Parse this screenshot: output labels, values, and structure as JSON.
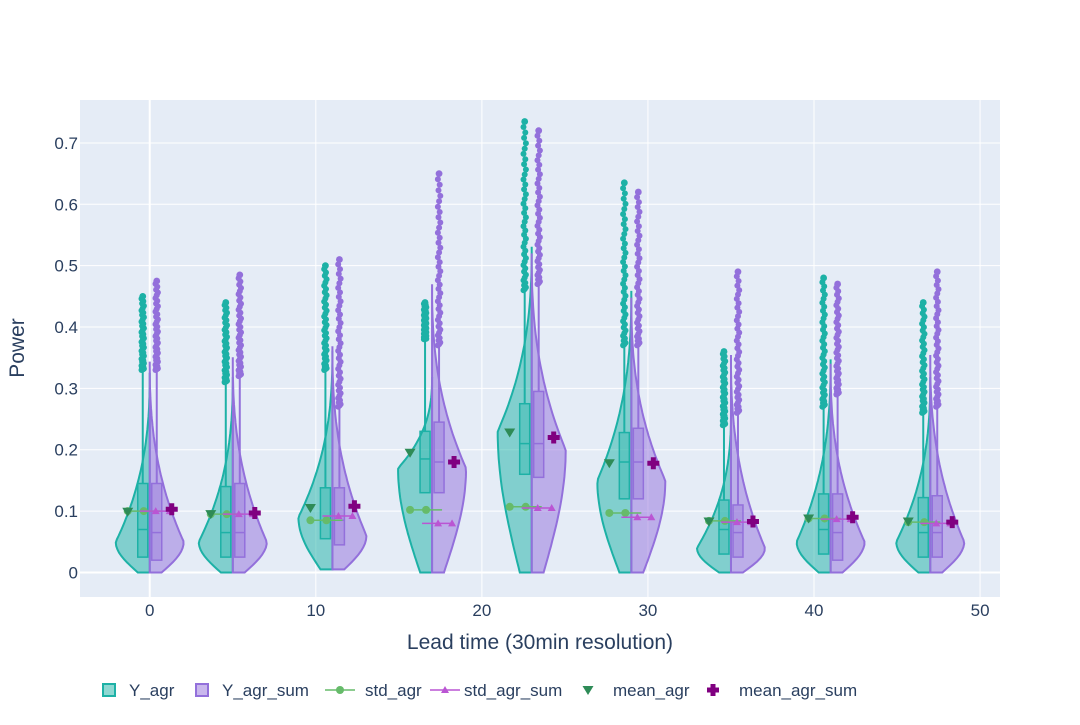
{
  "chart_data": {
    "type": "violin",
    "title": "",
    "xlabel": "Lead time (30min resolution)",
    "ylabel": "Power",
    "xlim": [
      -4.2,
      51.2
    ],
    "ylim": [
      -0.04,
      0.77
    ],
    "x_ticks": [
      0,
      10,
      20,
      30,
      40,
      50
    ],
    "y_ticks": [
      0,
      0.1,
      0.2,
      0.3,
      0.4,
      0.5,
      0.6,
      0.7
    ],
    "grid": true,
    "legend_position": "bottom",
    "colors": {
      "Y_agr": "#1db1a6",
      "Y_agr_sum": "#9370db",
      "std_agr": "#66bb6a",
      "std_agr_sum": "#ba55d3",
      "mean_agr": "#2e8b57",
      "mean_agr_sum": "#800080",
      "plot_bg": "#e5ecf6"
    },
    "legend": [
      {
        "key": "Y_agr",
        "label": "Y_agr",
        "symbol": "box"
      },
      {
        "key": "Y_agr_sum",
        "label": "Y_agr_sum",
        "symbol": "box"
      },
      {
        "key": "std_agr",
        "label": "std_agr",
        "symbol": "line-circle"
      },
      {
        "key": "std_agr_sum",
        "label": "std_agr_sum",
        "symbol": "line-triangle"
      },
      {
        "key": "mean_agr",
        "label": "mean_agr",
        "symbol": "triangle-down"
      },
      {
        "key": "mean_agr_sum",
        "label": "mean_agr_sum",
        "symbol": "cross"
      }
    ],
    "lead_times": [
      0,
      5,
      11,
      17,
      23,
      29,
      35,
      41,
      47
    ],
    "series": [
      {
        "name": "Y_agr",
        "side": "negative",
        "q1": [
          0.025,
          0.025,
          0.055,
          0.13,
          0.16,
          0.12,
          0.03,
          0.03,
          0.025
        ],
        "median": [
          0.07,
          0.065,
          0.085,
          0.185,
          0.21,
          0.18,
          0.07,
          0.07,
          0.065
        ],
        "q3": [
          0.145,
          0.14,
          0.138,
          0.23,
          0.275,
          0.228,
          0.118,
          0.128,
          0.122
        ],
        "whisker_top": [
          0.33,
          0.31,
          0.33,
          0.38,
          0.46,
          0.37,
          0.24,
          0.27,
          0.26
        ],
        "outlier_max": [
          0.45,
          0.44,
          0.5,
          0.44,
          0.735,
          0.635,
          0.36,
          0.48,
          0.44
        ],
        "violin_min": [
          0,
          0,
          0.005,
          0,
          0,
          0,
          0,
          0,
          0
        ],
        "violin_mode": [
          0.05,
          0.05,
          0.09,
          0.17,
          0.23,
          0.15,
          0.04,
          0.05,
          0.05
        ]
      },
      {
        "name": "Y_agr_sum",
        "side": "positive",
        "q1": [
          0.02,
          0.025,
          0.045,
          0.13,
          0.155,
          0.12,
          0.025,
          0.02,
          0.025
        ],
        "median": [
          0.065,
          0.065,
          0.085,
          0.18,
          0.21,
          0.18,
          0.065,
          0.065,
          0.065
        ],
        "q3": [
          0.145,
          0.145,
          0.138,
          0.245,
          0.295,
          0.235,
          0.11,
          0.128,
          0.125
        ],
        "whisker_top": [
          0.33,
          0.32,
          0.27,
          0.37,
          0.47,
          0.37,
          0.26,
          0.29,
          0.27
        ],
        "outlier_max": [
          0.475,
          0.485,
          0.51,
          0.65,
          0.72,
          0.62,
          0.49,
          0.47,
          0.49
        ],
        "violin_min": [
          0,
          0,
          0.005,
          0,
          0,
          0,
          0,
          0,
          0
        ],
        "violin_mode": [
          0.05,
          0.05,
          0.06,
          0.17,
          0.2,
          0.15,
          0.04,
          0.05,
          0.05
        ]
      },
      {
        "name": "std_agr",
        "values": [
          0.1,
          0.095,
          0.085,
          0.102,
          0.107,
          0.097,
          0.084,
          0.088,
          0.082
        ]
      },
      {
        "name": "std_agr_sum",
        "values": [
          0.1,
          0.095,
          0.092,
          0.08,
          0.105,
          0.09,
          0.082,
          0.087,
          0.08
        ]
      },
      {
        "name": "mean_agr",
        "values": [
          0.099,
          0.095,
          0.105,
          0.195,
          0.228,
          0.178,
          0.083,
          0.088,
          0.083
        ]
      },
      {
        "name": "mean_agr_sum",
        "values": [
          0.103,
          0.097,
          0.108,
          0.18,
          0.22,
          0.178,
          0.083,
          0.09,
          0.082
        ]
      }
    ]
  }
}
